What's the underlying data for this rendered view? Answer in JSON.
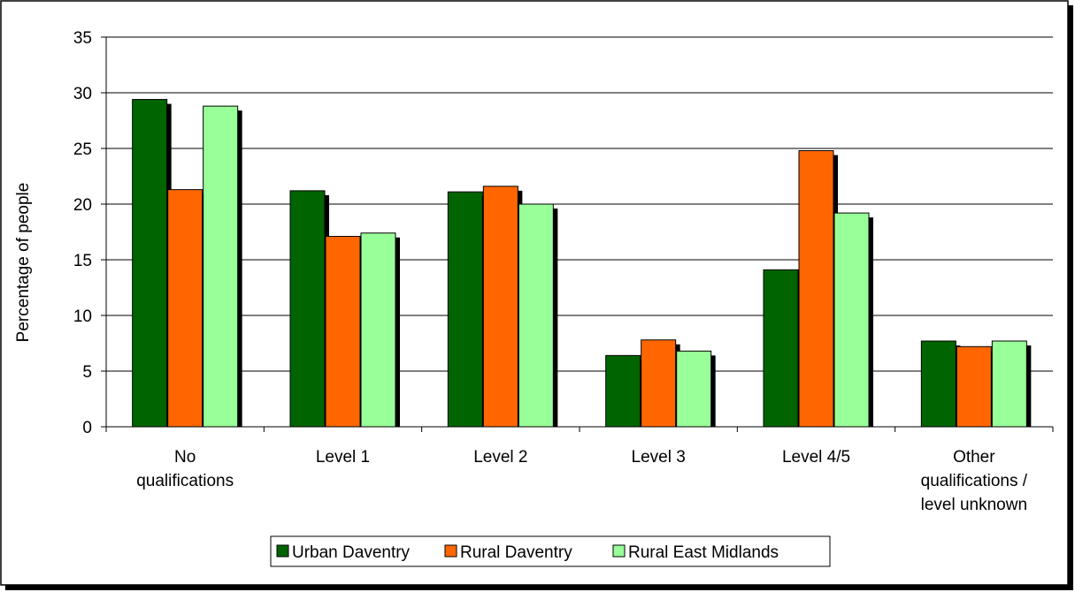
{
  "chart_data": {
    "type": "bar",
    "title": "",
    "xlabel": "",
    "ylabel": "Percentage of people",
    "ylim": [
      0,
      35
    ],
    "yticks": [
      "0",
      "5",
      "10",
      "15",
      "20",
      "25",
      "30",
      "35"
    ],
    "grid": "horizontal",
    "legend_position": "bottom",
    "categories": [
      [
        "No",
        "qualifications"
      ],
      [
        "Level 1"
      ],
      [
        "Level 2"
      ],
      [
        "Level 3"
      ],
      [
        "Level 4/5"
      ],
      [
        "Other",
        "qualifications /",
        "level unknown"
      ]
    ],
    "series": [
      {
        "name": "Urban Daventry",
        "color": "#006400",
        "values": [
          29.4,
          21.2,
          21.1,
          6.4,
          14.1,
          7.7
        ]
      },
      {
        "name": "Rural Daventry",
        "color": "#FF6600",
        "values": [
          21.3,
          17.1,
          21.6,
          7.8,
          24.8,
          7.2
        ]
      },
      {
        "name": "Rural East Midlands",
        "color": "#99FF99",
        "values": [
          28.8,
          17.4,
          20.0,
          6.8,
          19.2,
          7.7
        ]
      }
    ]
  }
}
